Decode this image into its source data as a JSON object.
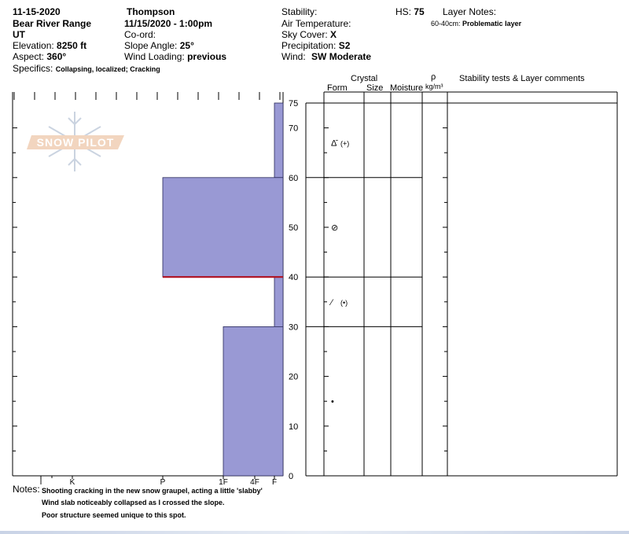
{
  "header": {
    "date": "11-15-2020",
    "range": "Bear River Range",
    "state": "UT",
    "elevation_label": "Elevation:",
    "elevation_value": "8250 ft",
    "aspect_label": "Aspect:",
    "aspect_value": "360°",
    "specifics_label": "Specifics:",
    "specifics_value": "Collapsing, localized; Cracking",
    "observer": "Thompson",
    "datetime": "11/15/2020 - 1:00pm",
    "coord_label": "Co-ord:",
    "slope_label": "Slope Angle:",
    "slope_value": "25°",
    "wind_loading_label": "Wind Loading:",
    "wind_loading_value": "previous",
    "stability_label": "Stability:",
    "air_temp_label": "Air Temperature:",
    "sky_label": "Sky Cover:",
    "sky_value": "X",
    "precip_label": "Precipitation:",
    "precip_value": "S2",
    "wind_label": "Wind:",
    "wind_value": "SW Moderate",
    "hs_label": "HS:",
    "hs_value": "75",
    "layer_notes_label": "Layer Notes:",
    "layer_note_range": "60-40cm:",
    "layer_note_text": "Problematic layer"
  },
  "columns": {
    "crystal": "Crystal",
    "form": "Form",
    "size": "Size",
    "moisture": "Moisture",
    "rho": "ρ",
    "density_unit": "kg/m³",
    "stability": "Stability tests & Layer comments"
  },
  "watermark": "SNOW PILOT",
  "notes": {
    "label": "Notes:",
    "lines": [
      "Shooting cracking in the new snow graupel, acting a little 'slabby'",
      "Wind slab noticeably collapsed as I crossed the slope.",
      "Poor structure seemed unique to this spot."
    ]
  },
  "chart_data": {
    "type": "bar",
    "orientation": "horizontal",
    "ylim": [
      0,
      75
    ],
    "y_ticks": [
      0,
      10,
      20,
      30,
      40,
      50,
      60,
      70,
      75
    ],
    "hardness_scale": [
      "I",
      "K",
      "P",
      "1F",
      "4F",
      "F"
    ],
    "hardness_values": {
      "F": 1,
      "4F": 2,
      "1F": 3,
      "P": 4,
      "K": 5,
      "I": 6
    },
    "layers": [
      {
        "bottom": 60,
        "top": 75,
        "hardness": "F"
      },
      {
        "bottom": 40,
        "top": 60,
        "hardness": "P"
      },
      {
        "bottom": 30,
        "top": 40,
        "hardness": "F"
      },
      {
        "bottom": 0,
        "top": 30,
        "hardness": "1F"
      }
    ],
    "weak_layer_depth": 40,
    "layer_boundaries": [
      60,
      40,
      30
    ],
    "grain_symbols": [
      {
        "depth": 67,
        "symbol": "Δ̄",
        "label": "(+)"
      },
      {
        "depth": 50,
        "symbol": "⊘",
        "label": ""
      },
      {
        "depth": 35,
        "symbol": "⁄",
        "label": "(•)"
      },
      {
        "depth": 15,
        "symbol": "•",
        "label": ""
      }
    ]
  }
}
